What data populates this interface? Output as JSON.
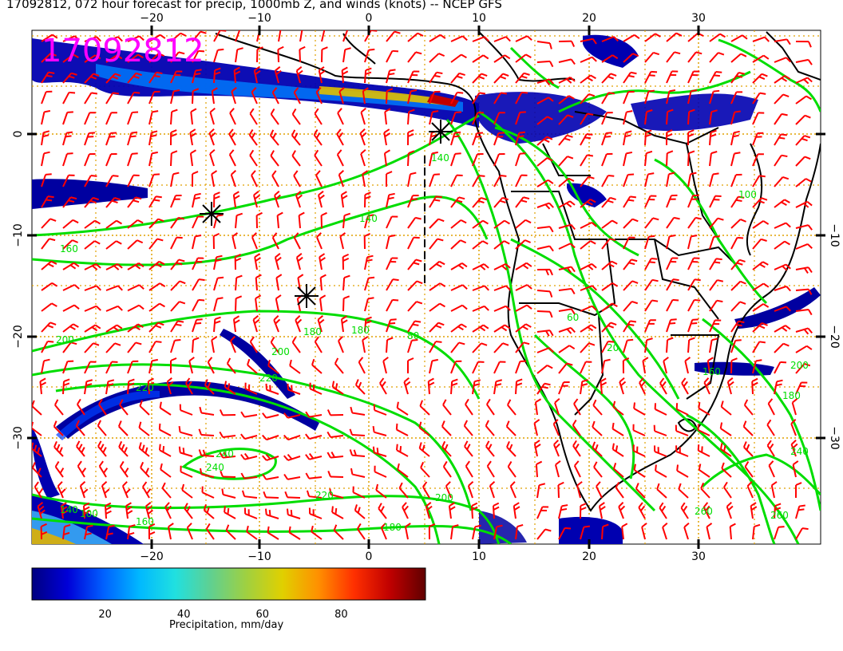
{
  "title": "17092812, 072 hour forecast for precip, 1000mb Z, and winds (knots) -- NCEP GFS",
  "stamp": "17092812",
  "axes": {
    "lon_ticks_top": [
      "−20",
      "−10",
      "0",
      "10",
      "20",
      "30"
    ],
    "lon_ticks_bottom": [
      "−20",
      "−10",
      "0",
      "10",
      "20",
      "30"
    ],
    "lat_ticks_left": [
      "0",
      "−10",
      "−20",
      "−30"
    ],
    "lat_ticks_right": [
      "−10",
      "−20",
      "−30"
    ]
  },
  "contour_labels": [
    "160",
    "140",
    "200",
    "180",
    "220",
    "240",
    "220",
    "200",
    "180",
    "160",
    "180",
    "200",
    "220",
    "240",
    "260",
    "260",
    "240",
    "140",
    "100",
    "80",
    "60",
    "20",
    "200",
    "180",
    "160",
    "140",
    "100"
  ],
  "colorbar": {
    "ticks": [
      "20",
      "40",
      "60",
      "80"
    ],
    "title": "Precipitation, mm/day",
    "colors": [
      "#000080",
      "#0000d8",
      "#0060ff",
      "#00b8ff",
      "#20e0e0",
      "#60d090",
      "#a0d040",
      "#e0d000",
      "#ff9000",
      "#ff3000",
      "#c00000",
      "#600000"
    ]
  },
  "style": {
    "contour_color": "#00dd00",
    "wind_color": "#ff0000",
    "grid_color": "#e0a000",
    "coast_color": "#000000"
  }
}
